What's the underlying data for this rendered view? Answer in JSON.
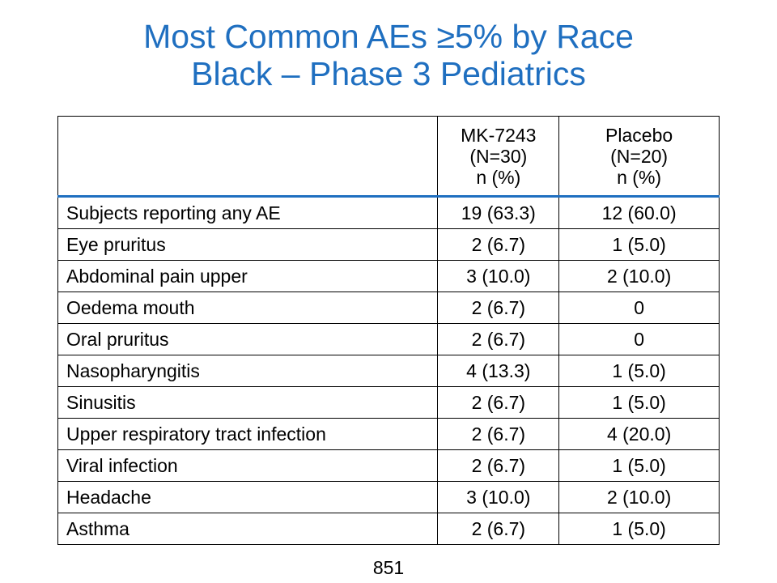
{
  "title": {
    "line1": "Most Common AEs ≥5% by Race",
    "line2": "Black – Phase 3 Pediatrics"
  },
  "table": {
    "header": {
      "term": "",
      "col1": {
        "line1": "MK-7243",
        "line2": "(N=30)",
        "line3": "n (%)"
      },
      "col2": {
        "line1": "Placebo",
        "line2": "(N=20)",
        "line3": "n (%)"
      }
    },
    "rows": [
      {
        "term": "Subjects reporting any AE",
        "mk": "19 (63.3)",
        "placebo": "12 (60.0)"
      },
      {
        "term": "Eye pruritus",
        "mk": "2 (6.7)",
        "placebo": "1 (5.0)"
      },
      {
        "term": "Abdominal pain upper",
        "mk": "3 (10.0)",
        "placebo": "2 (10.0)"
      },
      {
        "term": "Oedema mouth",
        "mk": "2 (6.7)",
        "placebo": "0"
      },
      {
        "term": "Oral pruritus",
        "mk": "2 (6.7)",
        "placebo": "0"
      },
      {
        "term": "Nasopharyngitis",
        "mk": "4 (13.3)",
        "placebo": "1 (5.0)"
      },
      {
        "term": "Sinusitis",
        "mk": "2 (6.7)",
        "placebo": "1 (5.0)"
      },
      {
        "term": "Upper respiratory tract infection",
        "mk": "2 (6.7)",
        "placebo": "4 (20.0)"
      },
      {
        "term": "Viral infection",
        "mk": "2 (6.7)",
        "placebo": "1 (5.0)"
      },
      {
        "term": "Headache",
        "mk": "3 (10.0)",
        "placebo": "2 (10.0)"
      },
      {
        "term": "Asthma",
        "mk": "2 (6.7)",
        "placebo": "1 (5.0)"
      }
    ]
  },
  "page_number": "851",
  "colors": {
    "title": "#1f6fc0",
    "header_rule": "#1f6fc0"
  }
}
